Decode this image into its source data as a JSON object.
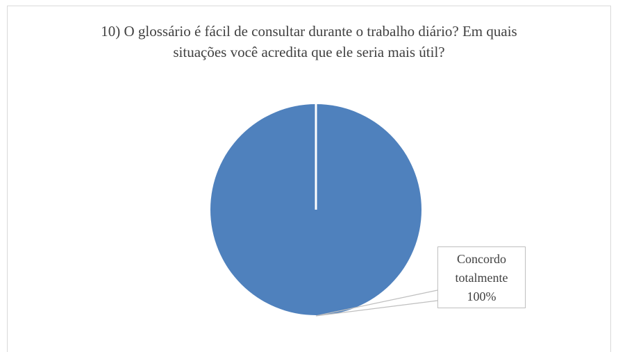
{
  "chart_data": {
    "type": "pie",
    "title": "10) O glossário é fácil de consultar durante o trabalho diário? Em quais situações você acredita que ele seria mais útil?",
    "categories": [
      "Concordo totalmente"
    ],
    "values": [
      100
    ],
    "value_labels": [
      "100%"
    ],
    "colors": [
      "#4f81bd"
    ]
  }
}
